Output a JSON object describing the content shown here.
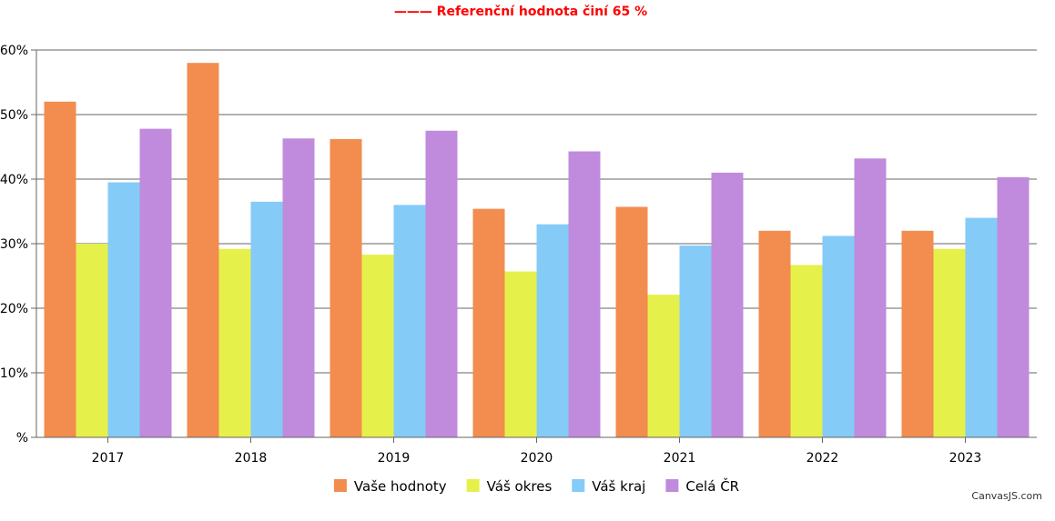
{
  "chart_data": {
    "type": "bar",
    "title": "",
    "subtitle": "——— Referenční hodnota činí 65 %",
    "xlabel": "",
    "ylabel": "",
    "ylim": [
      0,
      60
    ],
    "yticks": [
      0,
      10,
      20,
      30,
      40,
      50,
      60
    ],
    "ytick_labels": [
      "%",
      "10%",
      "20%",
      "30%",
      "40%",
      "50%",
      "60%"
    ],
    "categories": [
      "2017",
      "2018",
      "2019",
      "2020",
      "2021",
      "2022",
      "2023"
    ],
    "series": [
      {
        "name": "Vaše hodnoty",
        "color": "#f28c4f",
        "values": [
          52,
          58,
          46.2,
          35.4,
          35.7,
          32,
          32
        ]
      },
      {
        "name": "Váš okres",
        "color": "#e6f04a",
        "values": [
          30,
          29.2,
          28.3,
          25.7,
          22.1,
          26.7,
          29.2
        ]
      },
      {
        "name": "Váš kraj",
        "color": "#84cbf7",
        "values": [
          39.5,
          36.5,
          36,
          33,
          29.7,
          31.2,
          34
        ]
      },
      {
        "name": "Celá ČR",
        "color": "#c08bdc",
        "values": [
          47.8,
          46.3,
          47.5,
          44.3,
          41,
          43.2,
          40.3
        ]
      }
    ],
    "grid": true,
    "legend_position": "bottom-center",
    "subtitle_color": "#ff0000",
    "credit": "CanvasJS.com"
  }
}
